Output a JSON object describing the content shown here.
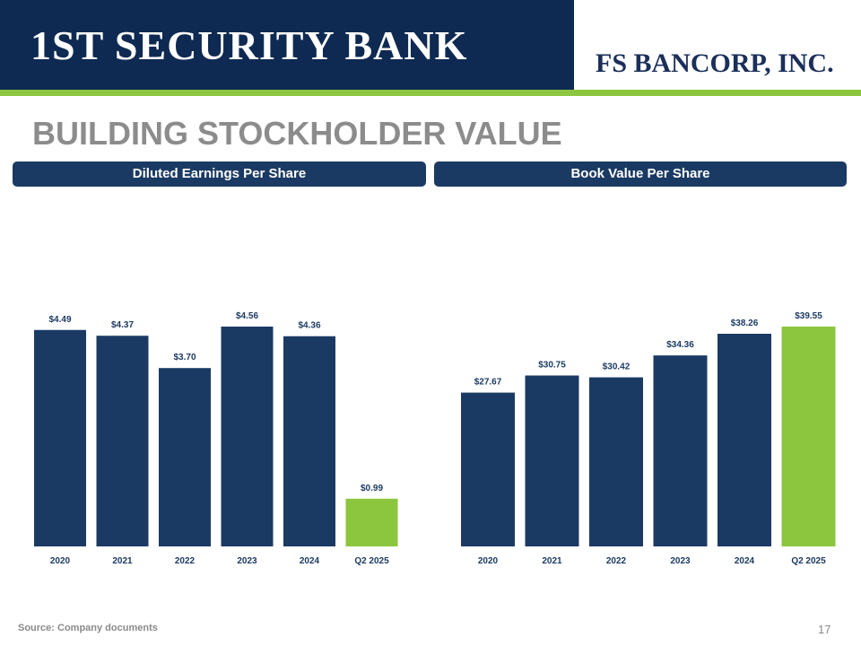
{
  "header": {
    "left_logo": "1ST SECURITY BANK",
    "right_logo": "FS BANCORP, INC."
  },
  "title": "BUILDING STOCKHOLDER VALUE",
  "colors": {
    "navy": "#1b3a63",
    "green": "#8cc63f",
    "banner": "#0f2a52",
    "title_gray": "#8c8c8c"
  },
  "chart_data": [
    {
      "type": "bar",
      "title": "Diluted Earnings Per Share",
      "categories": [
        "2020",
        "2021",
        "2022",
        "2023",
        "2024",
        "Q2 2025"
      ],
      "values": [
        4.49,
        4.37,
        3.7,
        4.56,
        4.36,
        0.99
      ],
      "labels": [
        "$4.49",
        "$4.37",
        "$3.70",
        "$4.56",
        "$4.36",
        "$0.99"
      ],
      "highlight": [
        false,
        false,
        false,
        false,
        false,
        true
      ],
      "ylim": [
        0,
        4.56
      ],
      "xlabel": "",
      "ylabel": ""
    },
    {
      "type": "bar",
      "title": "Book Value Per Share",
      "categories": [
        "2020",
        "2021",
        "2022",
        "2023",
        "2024",
        "Q2 2025"
      ],
      "values": [
        27.67,
        30.75,
        30.42,
        34.36,
        38.26,
        39.55
      ],
      "labels": [
        "$27.67",
        "$30.75",
        "$30.42",
        "$34.36",
        "$38.26",
        "$39.55"
      ],
      "highlight": [
        false,
        false,
        false,
        false,
        false,
        true
      ],
      "ylim": [
        0,
        39.55
      ],
      "xlabel": "",
      "ylabel": ""
    }
  ],
  "footer": {
    "source": "Source: Company documents",
    "page_number": "17"
  }
}
